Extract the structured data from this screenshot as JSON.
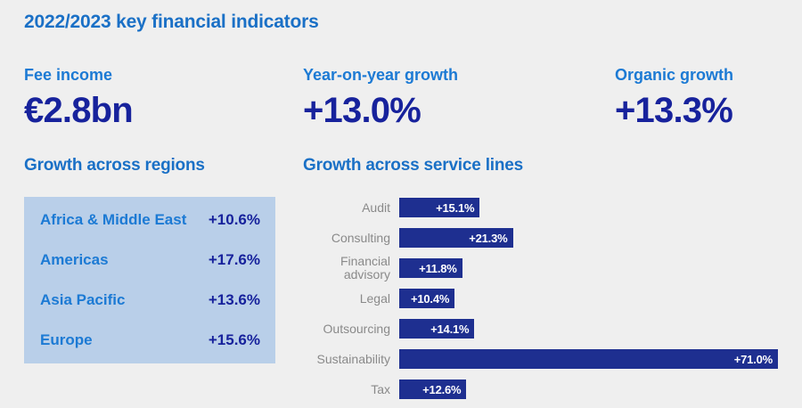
{
  "page": {
    "title": "2022/2023 key financial indicators"
  },
  "colors": {
    "background": "#efefef",
    "heading_blue": "#1a70c6",
    "bright_blue": "#1c7ad4",
    "value_navy": "#17229c",
    "panel_blue": "#b9cfe9",
    "label_gray": "#8a8a8a",
    "bar_navy": "#1e2f90",
    "bar_value_text": "#ffffff"
  },
  "kpis": [
    {
      "label": "Fee income",
      "value": "€2.8bn"
    },
    {
      "label": "Year-on-year growth",
      "value": "+13.0%"
    },
    {
      "label": "Organic growth",
      "value": "+13.3%"
    }
  ],
  "regions": {
    "heading": "Growth across regions",
    "rows": [
      {
        "label": "Africa & Middle East",
        "value": "+10.6%"
      },
      {
        "label": "Americas",
        "value": "+17.6%"
      },
      {
        "label": "Asia Pacific",
        "value": "+13.6%"
      },
      {
        "label": "Europe",
        "value": "+15.6%"
      }
    ]
  },
  "service_lines": {
    "heading": "Growth across service lines"
  },
  "chart_data": {
    "type": "bar",
    "orientation": "horizontal",
    "title": "Growth across service lines",
    "categories": [
      "Audit",
      "Consulting",
      "Financial advisory",
      "Legal",
      "Outsourcing",
      "Sustainability",
      "Tax"
    ],
    "values": [
      15.1,
      21.3,
      11.8,
      10.4,
      14.1,
      71.0,
      12.6
    ],
    "value_labels": [
      "+15.1%",
      "+21.3%",
      "+11.8%",
      "+10.4%",
      "+14.1%",
      "+71.0%",
      "+12.6%"
    ],
    "xlabel": "",
    "ylabel": "",
    "xlim": [
      0,
      71
    ],
    "grid": false,
    "legend": false,
    "bar_color": "#1e2f90",
    "value_label_position": "inside-right"
  }
}
